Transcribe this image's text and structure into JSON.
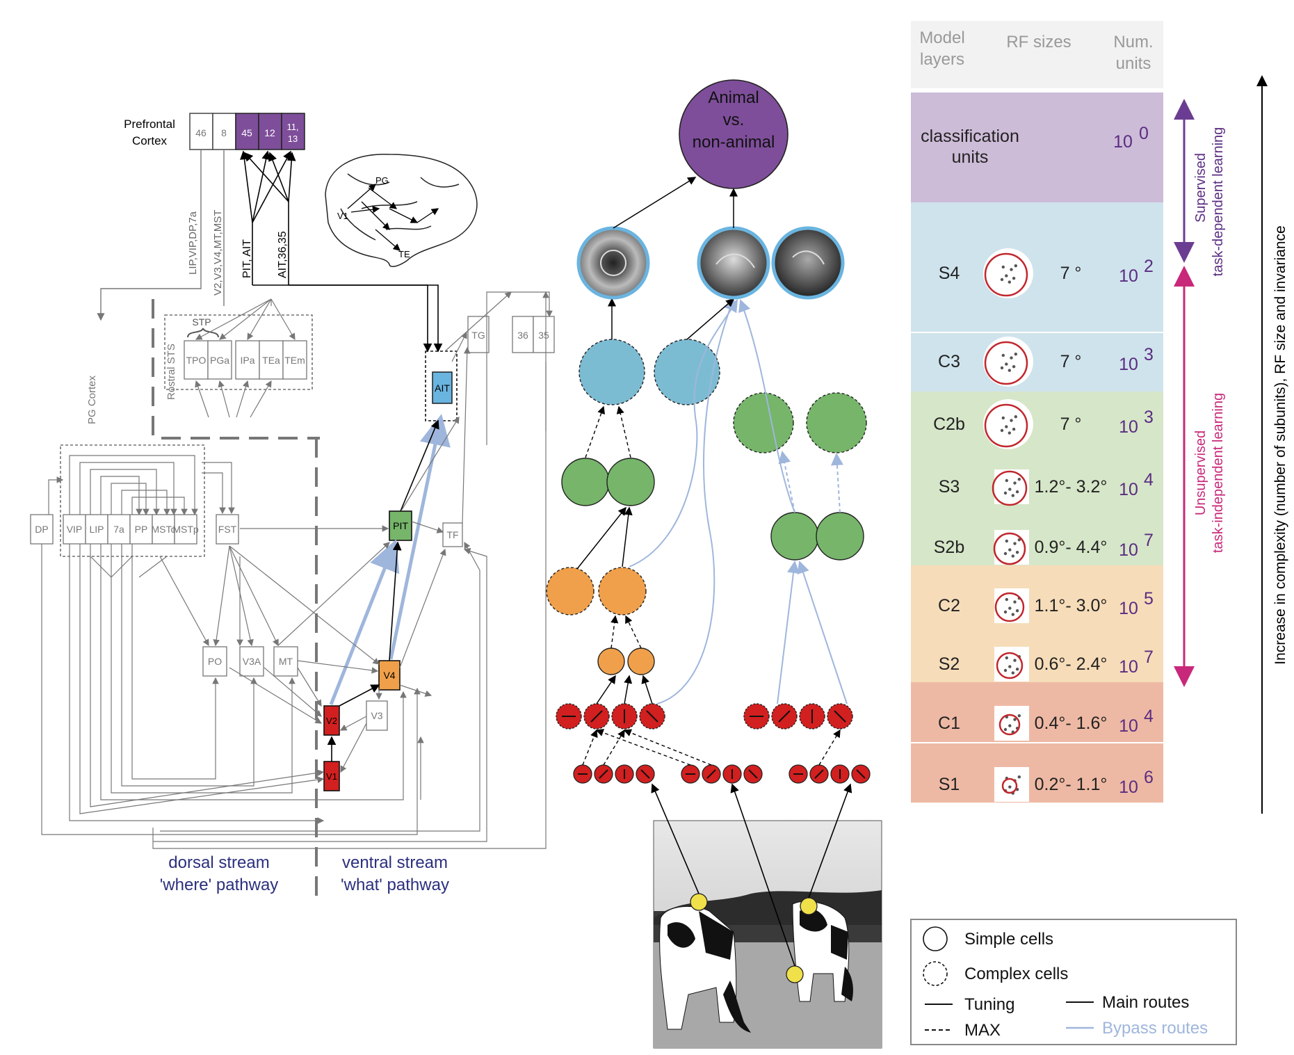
{
  "brain_diagram": {
    "prefrontal": {
      "label_line1": "Prefrontal",
      "label_line2": "Cortex",
      "areas": [
        "46",
        "8",
        "45",
        "12"
      ],
      "area_1113_line1": "11,",
      "area_1113_line2": "13"
    },
    "vertical_labels": {
      "lip": "LIP,VIP,DP,7a",
      "v2": "V2,V3,V4,MT,MST",
      "pit": "PIT, AIT",
      "ait": "AIT,36,35"
    },
    "brain_sketch": {
      "pg": "PG",
      "v1": "V1",
      "te": "TE"
    },
    "pg_cortex": "PG Cortex",
    "rostral_sts": "Rostral STS",
    "stp": "STP",
    "sts_areas": [
      "TPO",
      "PGa",
      "IPa",
      "TEa",
      "TEm"
    ],
    "dorsal_areas": [
      "DP",
      "VIP",
      "LIP",
      "7a",
      "PP",
      "MSTc",
      "MSTp",
      "FST"
    ],
    "mid_areas": [
      "PO",
      "V3A",
      "MT",
      "V3"
    ],
    "ventral": {
      "pit": "PIT",
      "ait": "AIT",
      "v4": "V4",
      "v2": "V2",
      "v1": "V1",
      "tg": "TG",
      "tf": "TF",
      "a36": "36",
      "a35": "35"
    },
    "dorsal_stream_line1": "dorsal stream",
    "dorsal_stream_line2": "'where' pathway",
    "ventral_stream_line1": "ventral stream",
    "ventral_stream_line2": "'what' pathway"
  },
  "model": {
    "top_node_line1": "Animal",
    "top_node_line2": "vs.",
    "top_node_line3": "non-animal"
  },
  "table": {
    "headers": {
      "layers_line1": "Model",
      "layers_line2": "layers",
      "rf": "RF sizes",
      "units_line1": "Num.",
      "units_line2": "units"
    },
    "classification_line1": "classification",
    "classification_line2": "units",
    "rows": [
      {
        "layer": "S4",
        "rf": "7 °",
        "num": "10",
        "exp": "2"
      },
      {
        "layer": "C3",
        "rf": "7 °",
        "num": "10",
        "exp": "3"
      },
      {
        "layer": "C2b",
        "rf": "7 °",
        "num": "10",
        "exp": "3"
      },
      {
        "layer": "S3",
        "rf": "1.2°- 3.2°",
        "num": "10",
        "exp": "4"
      },
      {
        "layer": "S2b",
        "rf": "0.9°- 4.4°",
        "num": "10",
        "exp": "7"
      },
      {
        "layer": "C2",
        "rf": "1.1°- 3.0°",
        "num": "10",
        "exp": "5"
      },
      {
        "layer": "S2",
        "rf": "0.6°- 2.4°",
        "num": "10",
        "exp": "7"
      },
      {
        "layer": "C1",
        "rf": "0.4°- 1.6°",
        "num": "10",
        "exp": "4"
      },
      {
        "layer": "S1",
        "rf": "0.2°- 1.1°",
        "num": "10",
        "exp": "6"
      }
    ],
    "classification_num": "10",
    "classification_exp": "0",
    "colors": {
      "header": "#f2f2f2",
      "purple": "#cdbcd8",
      "blue": "#cfe3ec",
      "green": "#d6e6c8",
      "orange": "#f6dcb9",
      "red": "#eeb9a4"
    }
  },
  "learning": {
    "supervised_line1": "Supervised",
    "supervised_line2": "task-dependent learning",
    "unsupervised_line1": "Unsupervised",
    "unsupervised_line2": "task-independent learning",
    "complexity": "Increase in complexity (number of subunits), RF size and invariance"
  },
  "legend": {
    "simple": "Simple cells",
    "complex": "Complex cells",
    "tuning": "Tuning",
    "max": "MAX",
    "main": "Main routes",
    "bypass": "Bypass routes"
  }
}
